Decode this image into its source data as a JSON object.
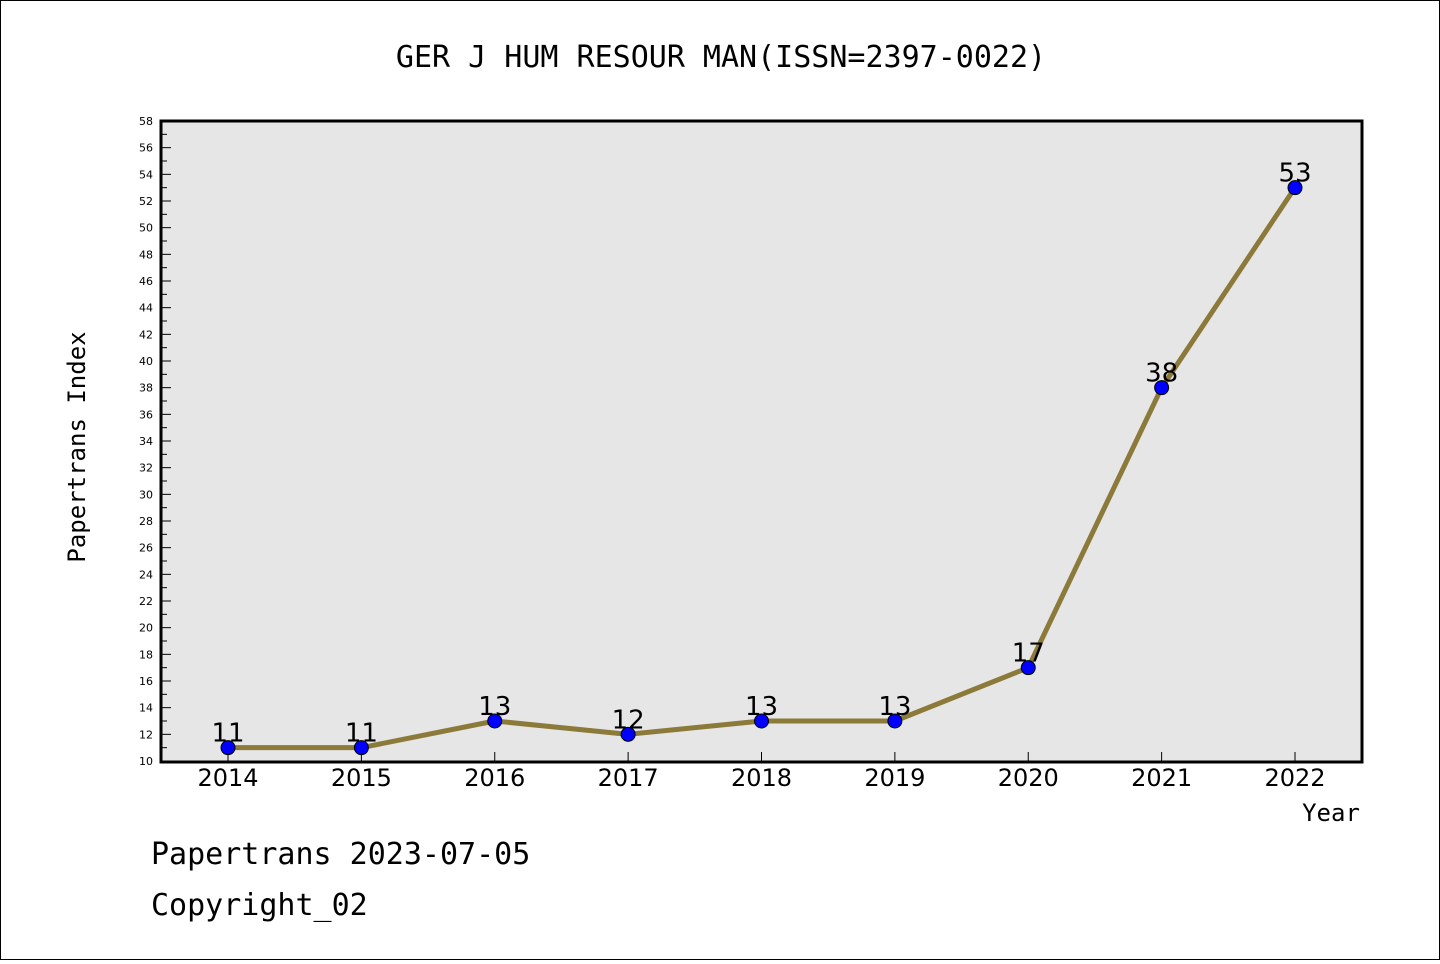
{
  "chart_data": {
    "type": "line",
    "title": "GER J HUM RESOUR MAN(ISSN=2397-0022)",
    "xlabel": "Year",
    "ylabel": "Papertrans Index",
    "categories": [
      "2014",
      "2015",
      "2016",
      "2017",
      "2018",
      "2019",
      "2020",
      "2021",
      "2022"
    ],
    "values": [
      11,
      11,
      13,
      12,
      13,
      13,
      17,
      38,
      53
    ],
    "ylim": [
      10,
      58
    ],
    "ytick_step": 2,
    "grid": false,
    "colors": {
      "line": "#8c7a3a",
      "marker": "#0000ff",
      "plot_background": "#e6e6e6",
      "frame": "#000000"
    }
  },
  "footer": {
    "line1": "Papertrans 2023-07-05",
    "line2": "Copyright_02"
  }
}
